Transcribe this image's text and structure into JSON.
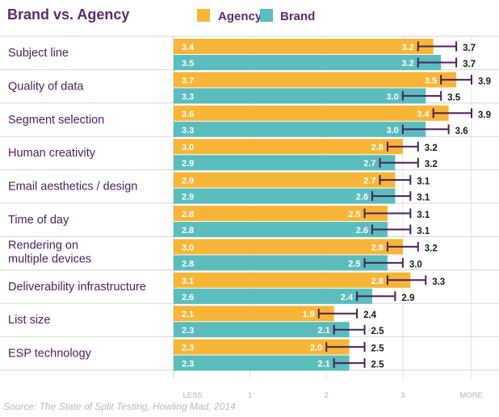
{
  "chart_data": {
    "type": "bar",
    "orientation": "horizontal",
    "title": "Brand vs. Agency",
    "source": "Source: The State of Split Testing, Howling Mad, 2014",
    "xlim": [
      0,
      3.9
    ],
    "xticks": [
      {
        "value": 0.25,
        "label": "LESS"
      },
      {
        "value": 1,
        "label": "1"
      },
      {
        "value": 2,
        "label": "2"
      },
      {
        "value": 3,
        "label": "3"
      },
      {
        "value": 3.9,
        "label": "MORE"
      }
    ],
    "legend_position": "top",
    "series": [
      {
        "name": "Agency",
        "color": "#f7b538"
      },
      {
        "name": "Brand",
        "color": "#5bbdbd"
      }
    ],
    "error_bar_color": "#4a1f5a",
    "categories": [
      {
        "label": "Subject line",
        "agency": {
          "mean": 3.4,
          "low": 3.2,
          "high": 3.7
        },
        "brand": {
          "mean": 3.5,
          "low": 3.2,
          "high": 3.7
        }
      },
      {
        "label": "Quality of data",
        "agency": {
          "mean": 3.7,
          "low": 3.5,
          "high": 3.9
        },
        "brand": {
          "mean": 3.3,
          "low": 3.0,
          "high": 3.5
        }
      },
      {
        "label": "Segment selection",
        "agency": {
          "mean": 3.6,
          "low": 3.4,
          "high": 3.9
        },
        "brand": {
          "mean": 3.3,
          "low": 3.0,
          "high": 3.6
        }
      },
      {
        "label": "Human creativity",
        "agency": {
          "mean": 3.0,
          "low": 2.8,
          "high": 3.2
        },
        "brand": {
          "mean": 2.9,
          "low": 2.7,
          "high": 3.2
        }
      },
      {
        "label": "Email aesthetics / design",
        "agency": {
          "mean": 2.9,
          "low": 2.7,
          "high": 3.1
        },
        "brand": {
          "mean": 2.9,
          "low": 2.6,
          "high": 3.1
        }
      },
      {
        "label": "Time of day",
        "agency": {
          "mean": 2.8,
          "low": 2.5,
          "high": 3.1
        },
        "brand": {
          "mean": 2.8,
          "low": 2.6,
          "high": 3.1
        }
      },
      {
        "label": "Rendering on\nmultiple devices",
        "agency": {
          "mean": 3.0,
          "low": 2.8,
          "high": 3.2
        },
        "brand": {
          "mean": 2.8,
          "low": 2.5,
          "high": 3.0
        }
      },
      {
        "label": "Deliverability infrastructure",
        "agency": {
          "mean": 3.1,
          "low": 2.8,
          "high": 3.3
        },
        "brand": {
          "mean": 2.6,
          "low": 2.4,
          "high": 2.9
        }
      },
      {
        "label": "List size",
        "agency": {
          "mean": 2.1,
          "low": 1.9,
          "high": 2.4
        },
        "brand": {
          "mean": 2.3,
          "low": 2.1,
          "high": 2.5
        }
      },
      {
        "label": "ESP technology",
        "agency": {
          "mean": 2.3,
          "low": 2.0,
          "high": 2.5
        },
        "brand": {
          "mean": 2.3,
          "low": 2.1,
          "high": 2.5
        }
      }
    ]
  }
}
